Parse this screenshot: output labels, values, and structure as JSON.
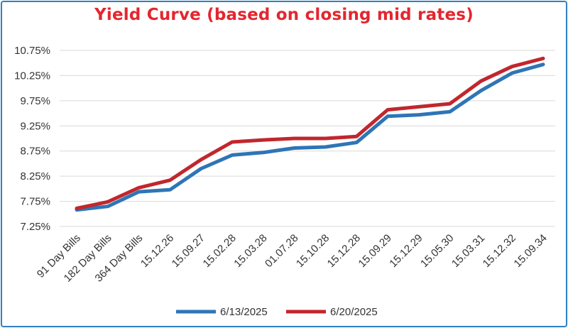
{
  "colors": {
    "title": "#e3262e",
    "frame": "#2f7fc0",
    "series": [
      "#2e75b6",
      "#c0272d"
    ],
    "grid": "#d9d9d9"
  },
  "chart_data": {
    "type": "line",
    "title": "Yield Curve (based on closing mid rates)",
    "xlabel": "",
    "ylabel": "",
    "categories": [
      "91 Day Bills",
      "182 Day Bills",
      "364 Day Bills",
      "15.12.26",
      "15.09.27",
      "15.02.28",
      "15.03.28",
      "01.07.28",
      "15.10.28",
      "15.12.28",
      "15.09.29",
      "15.12.29",
      "15.05.30",
      "15.03.31",
      "15.12.32",
      "15.09.34"
    ],
    "yticks": [
      "7.25%",
      "7.75%",
      "8.25%",
      "8.75%",
      "9.25%",
      "9.75%",
      "10.25%",
      "10.75%"
    ],
    "ylim": [
      7.25,
      10.75
    ],
    "grid": true,
    "legend_position": "bottom",
    "series": [
      {
        "name": "6/13/2025",
        "values": [
          7.58,
          7.65,
          7.94,
          7.98,
          8.4,
          8.67,
          8.72,
          8.81,
          8.83,
          8.92,
          9.44,
          9.47,
          9.53,
          9.95,
          10.3,
          10.47
        ]
      },
      {
        "name": "6/20/2025",
        "values": [
          7.61,
          7.74,
          8.02,
          8.17,
          8.58,
          8.93,
          8.97,
          9.0,
          9.0,
          9.04,
          9.57,
          9.63,
          9.69,
          10.14,
          10.43,
          10.59
        ]
      }
    ]
  }
}
